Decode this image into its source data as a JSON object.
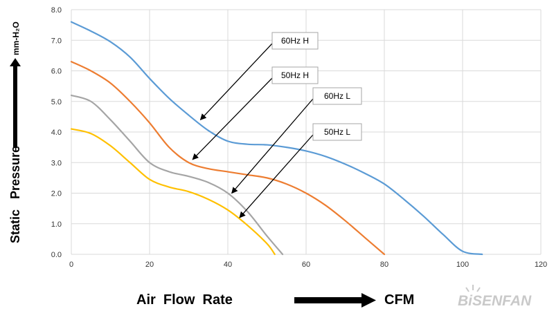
{
  "chart_data": {
    "type": "line",
    "xlim": [
      0,
      120
    ],
    "ylim": [
      0,
      8
    ],
    "x_ticks": [
      0,
      20,
      40,
      60,
      80,
      100,
      120
    ],
    "y_ticks": [
      "0.0",
      "1.0",
      "2.0",
      "3.0",
      "4.0",
      "5.0",
      "6.0",
      "7.0",
      "8.0"
    ],
    "grid": true,
    "xlabel": "Air  Flow  Rate",
    "xunit": "CFM",
    "ylabel": "Static   Pressure",
    "yunit": "mm-H₂O",
    "series": [
      {
        "name": "60Hz H",
        "color": "#5b9bd5",
        "x": [
          0,
          5,
          10,
          15,
          20,
          25,
          30,
          35,
          40,
          45,
          50,
          55,
          60,
          65,
          70,
          75,
          80,
          85,
          90,
          95,
          100,
          105
        ],
        "y": [
          7.6,
          7.3,
          6.95,
          6.45,
          5.75,
          5.1,
          4.55,
          4.05,
          3.7,
          3.6,
          3.58,
          3.5,
          3.38,
          3.2,
          2.95,
          2.65,
          2.3,
          1.8,
          1.25,
          0.65,
          0.1,
          0.0
        ]
      },
      {
        "name": "50Hz H",
        "color": "#ed7d31",
        "x": [
          0,
          5,
          10,
          15,
          20,
          25,
          30,
          35,
          40,
          45,
          50,
          55,
          60,
          65,
          70,
          75,
          80
        ],
        "y": [
          6.3,
          6.0,
          5.6,
          5.0,
          4.3,
          3.5,
          3.0,
          2.8,
          2.7,
          2.6,
          2.5,
          2.3,
          2.0,
          1.6,
          1.1,
          0.55,
          0.0
        ]
      },
      {
        "name": "60Hz L",
        "color": "#a5a5a5",
        "x": [
          0,
          5,
          10,
          15,
          20,
          25,
          30,
          35,
          40,
          45,
          50,
          54
        ],
        "y": [
          5.2,
          5.0,
          4.4,
          3.7,
          3.0,
          2.7,
          2.55,
          2.35,
          2.0,
          1.4,
          0.6,
          0.0
        ]
      },
      {
        "name": "50Hz L",
        "color": "#ffc000",
        "x": [
          0,
          5,
          10,
          15,
          20,
          25,
          30,
          35,
          40,
          45,
          50,
          52
        ],
        "y": [
          4.1,
          3.95,
          3.55,
          3.0,
          2.45,
          2.2,
          2.05,
          1.8,
          1.45,
          0.95,
          0.35,
          0.0
        ]
      }
    ],
    "annotations": [
      {
        "text": "60Hz H",
        "target": [
          33,
          4.4
        ]
      },
      {
        "text": "50Hz H",
        "target": [
          31,
          3.1
        ]
      },
      {
        "text": "60Hz L",
        "target": [
          41,
          2.0
        ]
      },
      {
        "text": "50Hz L",
        "target": [
          43,
          1.2
        ]
      }
    ]
  },
  "brand": {
    "text": "BiSENFAN",
    "color": "#c9c9c9"
  }
}
